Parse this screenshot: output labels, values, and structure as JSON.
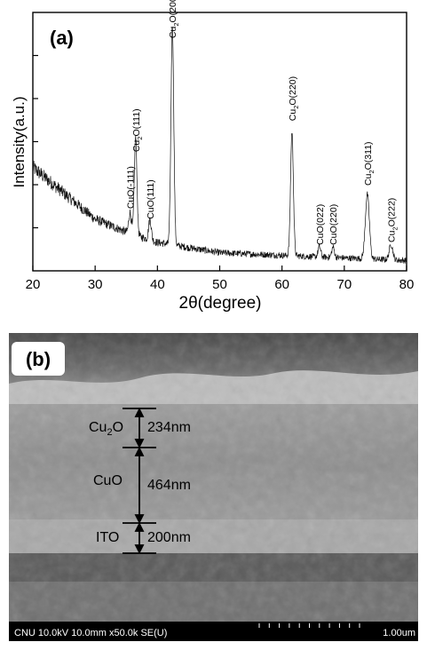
{
  "panel_a": {
    "label": "(a)",
    "xlabel": "2θ(degree)",
    "ylabel": "Intensity(a.u.)",
    "peak_labels": [
      {
        "text": "CuO(-111)",
        "x": 35.6
      },
      {
        "text": "Cu2O(111)",
        "x": 36.5
      },
      {
        "text": "CuO(111)",
        "x": 38.8
      },
      {
        "text": "Cu2O(200)",
        "x": 42.4
      },
      {
        "text": "Cu2O(220)",
        "x": 61.6
      },
      {
        "text": "CuO(022)",
        "x": 66.0
      },
      {
        "text": "CuO(220)",
        "x": 68.2
      },
      {
        "text": "Cu2O(311)",
        "x": 73.7
      },
      {
        "text": "Cu2O(222)",
        "x": 77.5
      }
    ]
  },
  "chart_data": {
    "type": "line",
    "title": "",
    "xlabel": "2θ(degree)",
    "ylabel": "Intensity(a.u.)",
    "xlim": [
      20,
      80
    ],
    "xticks": [
      20,
      30,
      40,
      50,
      60,
      70,
      80
    ],
    "ylim": [
      0,
      1
    ],
    "grid": false,
    "baseline": [
      [
        20,
        0.4
      ],
      [
        25,
        0.3
      ],
      [
        30,
        0.2
      ],
      [
        35,
        0.15
      ],
      [
        40,
        0.11
      ],
      [
        50,
        0.07
      ],
      [
        60,
        0.06
      ],
      [
        70,
        0.05
      ],
      [
        80,
        0.04
      ]
    ],
    "peaks": [
      {
        "x": 35.6,
        "height": 0.08,
        "width": 0.3
      },
      {
        "x": 36.5,
        "height": 0.38,
        "width": 0.3
      },
      {
        "x": 38.8,
        "height": 0.08,
        "width": 0.3
      },
      {
        "x": 42.4,
        "height": 0.85,
        "width": 0.32
      },
      {
        "x": 61.6,
        "height": 0.48,
        "width": 0.32
      },
      {
        "x": 66.0,
        "height": 0.04,
        "width": 0.3
      },
      {
        "x": 68.2,
        "height": 0.04,
        "width": 0.3
      },
      {
        "x": 73.7,
        "height": 0.25,
        "width": 0.45
      },
      {
        "x": 77.5,
        "height": 0.06,
        "width": 0.4
      }
    ]
  },
  "panel_b": {
    "label": "(b)",
    "layers": [
      {
        "name": "Cu2O",
        "thickness": "234nm"
      },
      {
        "name": "CuO",
        "thickness": "464nm"
      },
      {
        "name": "ITO",
        "thickness": "200nm"
      }
    ],
    "info_bar": "CNU 10.0kV 10.0mm x50.0k SE(U)",
    "scale_label": "1.00um"
  }
}
